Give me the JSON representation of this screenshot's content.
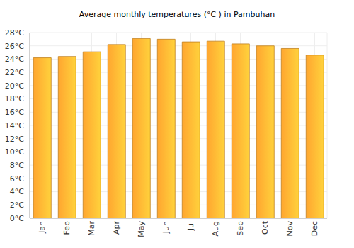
{
  "chart_data": {
    "type": "bar",
    "title": "Average monthly temperatures (°C ) in Pambuhan",
    "categories": [
      "Jan",
      "Feb",
      "Mar",
      "Apr",
      "May",
      "Jun",
      "Jul",
      "Aug",
      "Sep",
      "Oct",
      "Nov",
      "Dec"
    ],
    "values": [
      24.2,
      24.4,
      25.1,
      26.2,
      27.1,
      27.0,
      26.6,
      26.7,
      26.3,
      26.0,
      25.6,
      24.6
    ],
    "color": "#ffa630",
    "ylim": [
      0,
      28
    ],
    "yticks": [
      {
        "value": 0,
        "label": "0°C"
      },
      {
        "value": 2,
        "label": "2°C"
      },
      {
        "value": 4,
        "label": "4°C"
      },
      {
        "value": 6,
        "label": "6°C"
      },
      {
        "value": 8,
        "label": "8°C"
      },
      {
        "value": 10,
        "label": "10°C"
      },
      {
        "value": 12,
        "label": "12°C"
      },
      {
        "value": 14,
        "label": "14°C"
      },
      {
        "value": 16,
        "label": "16°C"
      },
      {
        "value": 18,
        "label": "18°C"
      },
      {
        "value": 20,
        "label": "20°C"
      },
      {
        "value": 22,
        "label": "22°C"
      },
      {
        "value": 24,
        "label": "24°C"
      },
      {
        "value": 26,
        "label": "26°C"
      },
      {
        "value": 28,
        "label": "28°C"
      }
    ],
    "grid": true
  }
}
